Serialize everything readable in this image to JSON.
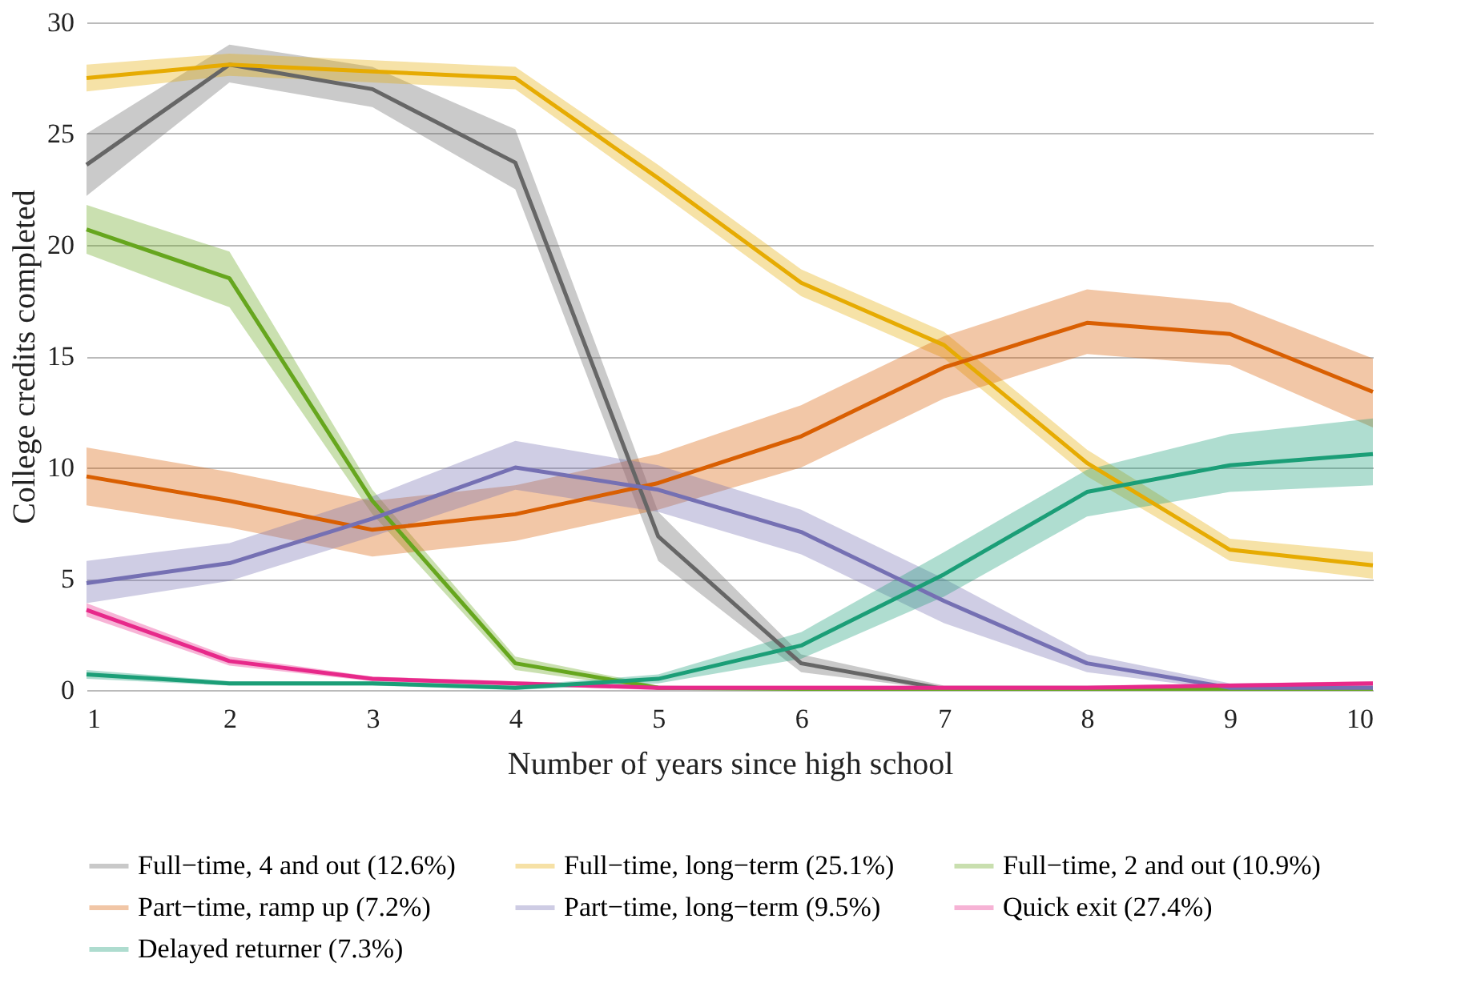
{
  "chart_data": {
    "type": "line",
    "xlabel": "Number of years since high school",
    "ylabel": "College credits completed",
    "x": [
      1,
      2,
      3,
      4,
      5,
      6,
      7,
      8,
      9,
      10
    ],
    "xlim": [
      1,
      10
    ],
    "xticks": [
      1,
      2,
      3,
      4,
      5,
      6,
      7,
      8,
      9,
      10
    ],
    "ylim": [
      0,
      30
    ],
    "yticks": [
      0,
      5,
      10,
      15,
      20,
      25,
      30
    ],
    "grid": "y",
    "legend": "bottom",
    "marker": "none",
    "line_style": "solid",
    "series": [
      {
        "name": "Full−time, 4 and out (12.6%)",
        "color": "#666666",
        "values": [
          23.6,
          28.1,
          27.0,
          23.7,
          6.9,
          1.2,
          0.05,
          0.05,
          0.05,
          0.05
        ],
        "lower": [
          22.2,
          27.3,
          26.2,
          22.5,
          5.8,
          0.8,
          0,
          0,
          0,
          0
        ],
        "upper": [
          25.0,
          29.0,
          28.0,
          25.2,
          8.0,
          1.6,
          0.2,
          0.2,
          0.2,
          0.2
        ]
      },
      {
        "name": "Full−time, long−term (25.1%)",
        "color": "#e6ab02",
        "values": [
          27.5,
          28.1,
          27.8,
          27.5,
          23.0,
          18.3,
          15.5,
          10.2,
          6.3,
          5.6
        ],
        "lower": [
          26.9,
          27.6,
          27.3,
          27.0,
          22.4,
          17.7,
          14.9,
          9.6,
          5.8,
          5.0
        ],
        "upper": [
          28.1,
          28.6,
          28.3,
          28.0,
          23.6,
          18.9,
          16.1,
          10.8,
          6.8,
          6.2
        ]
      },
      {
        "name": "Full−time, 2 and out (10.9%)",
        "color": "#66a61e",
        "values": [
          20.7,
          18.5,
          8.5,
          1.2,
          0.1,
          0.05,
          0.05,
          0.05,
          0.05,
          0.05
        ],
        "lower": [
          19.6,
          17.2,
          7.9,
          0.9,
          0,
          0,
          0,
          0,
          0,
          0
        ],
        "upper": [
          21.8,
          19.7,
          9.0,
          1.5,
          0.2,
          0.1,
          0.1,
          0.1,
          0.1,
          0.1
        ]
      },
      {
        "name": "Part−time, ramp up (7.2%)",
        "color": "#d95f02",
        "values": [
          9.6,
          8.5,
          7.2,
          7.9,
          9.3,
          11.4,
          14.5,
          16.5,
          16.0,
          13.4
        ],
        "lower": [
          8.3,
          7.3,
          6.0,
          6.7,
          8.1,
          10.0,
          13.1,
          15.1,
          14.6,
          11.8
        ],
        "upper": [
          10.9,
          9.8,
          8.5,
          9.2,
          10.6,
          12.8,
          15.9,
          18.0,
          17.4,
          14.9
        ]
      },
      {
        "name": "Part−time, long−term (9.5%)",
        "color": "#7570b3",
        "values": [
          4.8,
          5.7,
          7.7,
          10.0,
          9.0,
          7.1,
          4.0,
          1.2,
          0.1,
          0.1
        ],
        "lower": [
          3.9,
          4.9,
          6.9,
          9.0,
          8.0,
          6.1,
          3.0,
          0.8,
          0,
          0
        ],
        "upper": [
          5.8,
          6.6,
          8.7,
          11.2,
          10.1,
          8.1,
          5.0,
          1.6,
          0.3,
          0.3
        ]
      },
      {
        "name": "Quick exit (27.4%)",
        "color": "#e7298a",
        "values": [
          3.6,
          1.3,
          0.5,
          0.3,
          0.1,
          0.1,
          0.1,
          0.1,
          0.2,
          0.3
        ],
        "lower": [
          3.3,
          1.1,
          0.4,
          0.2,
          0,
          0,
          0,
          0,
          0.1,
          0.2
        ],
        "upper": [
          3.9,
          1.5,
          0.6,
          0.4,
          0.2,
          0.2,
          0.2,
          0.2,
          0.3,
          0.4
        ]
      },
      {
        "name": "Delayed returner (7.3%)",
        "color": "#1b9e77",
        "values": [
          0.7,
          0.3,
          0.3,
          0.1,
          0.5,
          2.0,
          5.2,
          8.9,
          10.1,
          10.6
        ],
        "lower": [
          0.5,
          0.2,
          0.2,
          0,
          0.3,
          1.4,
          4.2,
          7.8,
          8.9,
          9.2
        ],
        "upper": [
          0.9,
          0.4,
          0.4,
          0.2,
          0.7,
          2.6,
          6.2,
          9.9,
          11.5,
          12.2
        ]
      }
    ]
  }
}
